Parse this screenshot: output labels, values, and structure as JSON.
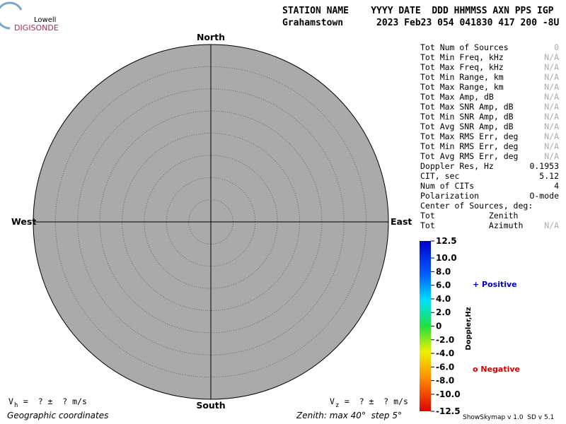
{
  "logo": {
    "top": "Lowell",
    "bottom": "DIGISONDE"
  },
  "header": {
    "line1": "STATION NAME    YYYY DATE  DDD HHMMSS AXN PPS IGP",
    "line2": "Grahamstown      2023 Feb23 054 041830 417 200 -8U"
  },
  "compass": {
    "north": "North",
    "south": "South",
    "west": "West",
    "east": "East"
  },
  "stats": [
    {
      "label": "Tot Num of Sources",
      "value": "0"
    },
    {
      "label": "Tot Min Freq, kHz",
      "value": "N/A"
    },
    {
      "label": "Tot Max Freq, kHz",
      "value": "N/A"
    },
    {
      "label": "Tot Min Range, km",
      "value": "N/A"
    },
    {
      "label": "Tot Max Range, km",
      "value": "N/A"
    },
    {
      "label": "Tot Max Amp, dB",
      "value": "N/A"
    },
    {
      "label": "Tot Max SNR Amp, dB",
      "value": "N/A"
    },
    {
      "label": "Tot Min SNR Amp, dB",
      "value": "N/A"
    },
    {
      "label": "Tot Avg SNR Amp, dB",
      "value": "N/A"
    },
    {
      "label": "Tot Max RMS Err, deg",
      "value": "N/A"
    },
    {
      "label": "Tot Min RMS Err, deg",
      "value": "N/A"
    },
    {
      "label": "Tot Avg RMS Err, deg",
      "value": "N/A"
    },
    {
      "label": "Doppler Res, Hz",
      "value": "0.1953"
    },
    {
      "label": "CIT, sec",
      "value": "5.12"
    },
    {
      "label": "Num of CITs",
      "value": "4"
    },
    {
      "label": "Polarization",
      "value": "O-mode"
    },
    {
      "label": "Center of Sources, deg:"
    },
    {
      "label": "Tot           Zenith"
    },
    {
      "label": "Tot           Azimuth",
      "value": "N/A"
    }
  ],
  "doppler_scale": {
    "title": "Doppler,Hz",
    "lim": [
      -12.5,
      12.5
    ],
    "ticks": [
      12.5,
      {
        "value": 10,
        "label": "10.0"
      },
      {
        "value": 8,
        "label": "8.0"
      },
      {
        "value": 6,
        "label": "6.0"
      },
      {
        "value": 4,
        "label": "4.0"
      },
      {
        "value": 2,
        "label": "2.0"
      },
      0,
      {
        "value": -2,
        "label": "-2.0"
      },
      {
        "value": -4,
        "label": "-4.0"
      },
      {
        "value": -6,
        "label": "-6.0"
      },
      {
        "value": -8,
        "label": "-8.0"
      },
      {
        "value": -10,
        "label": "-10.0"
      },
      -12.5
    ]
  },
  "legend": {
    "positive": "+ Positive",
    "negative": "o Negative"
  },
  "velocity": {
    "vh": {
      "symbol": "V",
      "subscript": "h",
      "text": " =  ? ±  ? m/s"
    },
    "vz": {
      "symbol": "V",
      "subscript": "z",
      "text": " =  ? ±  ? m/s"
    }
  },
  "footer": {
    "coordinates": "Geographic coordinates",
    "zenith": "Zenith: max 40°  step 5°",
    "version": "ShowSkymap v 1.0  SD v 5.1"
  }
}
